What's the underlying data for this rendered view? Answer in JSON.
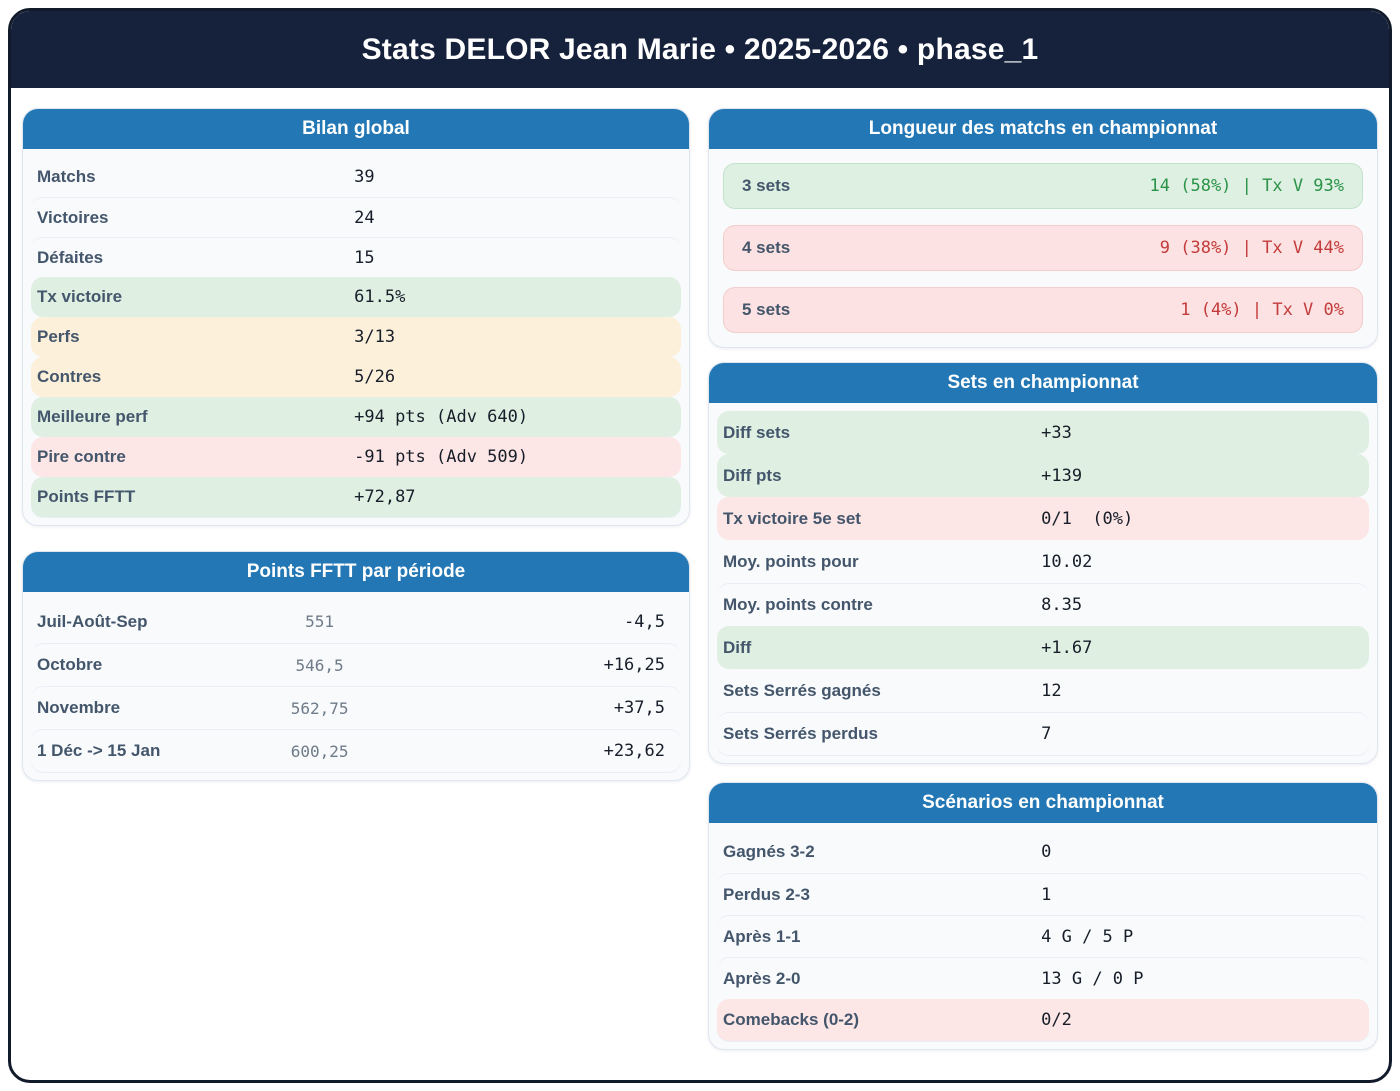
{
  "header": {
    "title": "Stats DELOR Jean Marie • 2025-2026 • phase_1"
  },
  "colors": {
    "header_navy": "#16223c",
    "panel_blue": "#2277b4",
    "label_slate": "#44566b",
    "value_dark": "#171e29",
    "green_bg": "#dff0e3",
    "yellow_bg": "#fcf0da",
    "pink_bg": "#fce6e6",
    "green_text": "#2b9348",
    "red_text": "#c43b3b"
  },
  "bilan": {
    "title": "Bilan global",
    "rows": [
      {
        "label": "Matchs",
        "value": "39",
        "tone": "plain"
      },
      {
        "label": "Victoires",
        "value": "24",
        "tone": "plain"
      },
      {
        "label": "Défaites",
        "value": "15",
        "tone": "plain"
      },
      {
        "label": "Tx victoire",
        "value": "61.5%",
        "tone": "hl-green"
      },
      {
        "label": "Perfs",
        "value": "3/13",
        "tone": "hl-yellow"
      },
      {
        "label": "Contres",
        "value": "5/26",
        "tone": "hl-yellow"
      },
      {
        "label": "Meilleure perf",
        "value": "+94 pts (Adv 640)",
        "tone": "hl-green"
      },
      {
        "label": "Pire contre",
        "value": "-91 pts (Adv 509)",
        "tone": "hl-pink"
      },
      {
        "label": "Points FFTT",
        "value": "+72,87",
        "tone": "hl-green"
      }
    ]
  },
  "periodes": {
    "title": "Points FFTT par période",
    "rows": [
      {
        "label": "Juil-Août-Sep",
        "points": "551",
        "delta": "-4,5"
      },
      {
        "label": "Octobre",
        "points": "546,5",
        "delta": "+16,25"
      },
      {
        "label": "Novembre",
        "points": "562,75",
        "delta": "+37,5"
      },
      {
        "label": "1 Déc -> 15 Jan",
        "points": "600,25",
        "delta": "+23,62"
      }
    ]
  },
  "longueur": {
    "title": "Longueur des matchs en championnat",
    "cards": [
      {
        "label": "3 sets",
        "value": "14 (58%) | Tx V 93%",
        "tone": "card-green"
      },
      {
        "label": "4 sets",
        "value": "9 (38%) | Tx V 44%",
        "tone": "card-red"
      },
      {
        "label": "5 sets",
        "value": "1 (4%) | Tx V 0%",
        "tone": "card-red"
      }
    ]
  },
  "sets": {
    "title": "Sets en championnat",
    "rows": [
      {
        "label": "Diff sets",
        "value": "+33",
        "tone": "hl-green"
      },
      {
        "label": "Diff pts",
        "value": "+139",
        "tone": "hl-green"
      },
      {
        "label": "Tx victoire 5e set",
        "value": "0/1  (0%)",
        "tone": "hl-pink"
      },
      {
        "label": "Moy. points pour",
        "value": "10.02",
        "tone": "plain"
      },
      {
        "label": "Moy. points contre",
        "value": "8.35",
        "tone": "plain"
      },
      {
        "label": "Diff",
        "value": "+1.67",
        "tone": "hl-green"
      },
      {
        "label": "Sets Serrés gagnés",
        "value": "12",
        "tone": "plain"
      },
      {
        "label": "Sets Serrés perdus",
        "value": "7",
        "tone": "plain"
      }
    ]
  },
  "scenarios": {
    "title": "Scénarios en championnat",
    "rows": [
      {
        "label": "Gagnés 3-2",
        "value": "0",
        "tone": "plain"
      },
      {
        "label": "Perdus 2-3",
        "value": "1",
        "tone": "plain"
      },
      {
        "label": "Après 1-1",
        "value": "4 G / 5 P",
        "tone": "plain"
      },
      {
        "label": "Après 2-0",
        "value": "13 G / 0 P",
        "tone": "plain"
      },
      {
        "label": "Comebacks (0-2)",
        "value": "0/2",
        "tone": "hl-pink"
      }
    ]
  }
}
